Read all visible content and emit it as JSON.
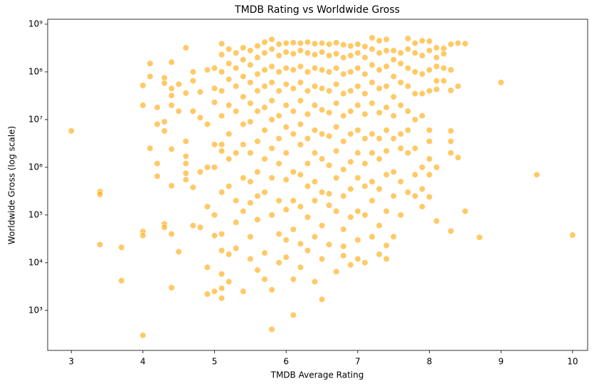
{
  "chart_data": {
    "type": "scatter",
    "title": "TMDB Rating vs Worldwide Gross",
    "x_label": "TMDB Average Rating",
    "y_label": "Worldwide Gross (log scale)",
    "color": "#ffa500",
    "yscale": "log",
    "xlim": [
      2.67,
      10.21
    ],
    "xticks": [
      3,
      4,
      5,
      6,
      7,
      8,
      9,
      10
    ],
    "ylim": [
      145,
      1270000000.0
    ],
    "yticks": [
      {
        "value": 1000.0,
        "label": "10³"
      },
      {
        "value": 10000.0,
        "label": "10⁴"
      },
      {
        "value": 100000.0,
        "label": "10⁵"
      },
      {
        "value": 1000000.0,
        "label": "10⁶"
      },
      {
        "value": 10000000.0,
        "label": "10⁷"
      },
      {
        "value": 100000000.0,
        "label": "10⁸"
      },
      {
        "value": 1000000000.0,
        "label": "10⁹"
      }
    ],
    "x": [
      3,
      3.4,
      3.4,
      3.4,
      3.7,
      3.7,
      4,
      4,
      4,
      4,
      4,
      4.1,
      4.1,
      4.1,
      4.2,
      4.2,
      4.2,
      4.2,
      4.3,
      4.3,
      4.3,
      4.3,
      4.3,
      4.3,
      4.4,
      4.4,
      4.4,
      4.4,
      4.4,
      4.4,
      4.4,
      4.4,
      4.5,
      4.5,
      4.5,
      4.6,
      4.6,
      4.6,
      4.6,
      4.6,
      4.6,
      4.6,
      4.7,
      4.7,
      4.7,
      4.7,
      4.7,
      4.8,
      4.8,
      4.8,
      4.8,
      4.9,
      4.9,
      4.9,
      4.9,
      4.9,
      4.9,
      5,
      5,
      5,
      5,
      5,
      5,
      5,
      5,
      5.1,
      5.1,
      5.1,
      5.1,
      5.1,
      5.1,
      5.1,
      5.1,
      5.1,
      5.1,
      5.1,
      5.1,
      5.1,
      5.2,
      5.2,
      5.2,
      5.2,
      5.2,
      5.2,
      5.2,
      5.2,
      5.2,
      5.3,
      5.3,
      5.3,
      5.3,
      5.3,
      5.3,
      5.3,
      5.3,
      5.4,
      5.4,
      5.4,
      5.4,
      5.4,
      5.4,
      5.4,
      5.4,
      5.4,
      5.5,
      5.5,
      5.5,
      5.5,
      5.5,
      5.5,
      5.5,
      5.5,
      5.5,
      5.5,
      5.6,
      5.6,
      5.6,
      5.6,
      5.6,
      5.6,
      5.6,
      5.6,
      5.6,
      5.6,
      5.7,
      5.7,
      5.7,
      5.7,
      5.7,
      5.7,
      5.7,
      5.7,
      5.7,
      5.7,
      5.8,
      5.8,
      5.8,
      5.8,
      5.8,
      5.8,
      5.8,
      5.8,
      5.8,
      5.8,
      5.8,
      5.9,
      5.9,
      5.9,
      5.9,
      5.9,
      5.9,
      5.9,
      5.9,
      5.9,
      5.9,
      6,
      6,
      6,
      6,
      6,
      6,
      6,
      6,
      6,
      6,
      6,
      6.1,
      6.1,
      6.1,
      6.1,
      6.1,
      6.1,
      6.1,
      6.1,
      6.1,
      6.1,
      6.1,
      6.2,
      6.2,
      6.2,
      6.2,
      6.2,
      6.2,
      6.2,
      6.2,
      6.2,
      6.2,
      6.2,
      6.3,
      6.3,
      6.3,
      6.3,
      6.3,
      6.3,
      6.3,
      6.3,
      6.3,
      6.3,
      6.4,
      6.4,
      6.4,
      6.4,
      6.4,
      6.4,
      6.4,
      6.4,
      6.4,
      6.4,
      6.4,
      6.5,
      6.5,
      6.5,
      6.5,
      6.5,
      6.5,
      6.5,
      6.5,
      6.5,
      6.5,
      6.5,
      6.6,
      6.6,
      6.6,
      6.6,
      6.6,
      6.6,
      6.6,
      6.6,
      6.6,
      6.6,
      6.7,
      6.7,
      6.7,
      6.7,
      6.7,
      6.7,
      6.7,
      6.7,
      6.7,
      6.7,
      6.8,
      6.8,
      6.8,
      6.8,
      6.8,
      6.8,
      6.8,
      6.8,
      6.8,
      6.8,
      6.8,
      6.9,
      6.9,
      6.9,
      6.9,
      6.9,
      6.9,
      6.9,
      6.9,
      6.9,
      6.9,
      7,
      7,
      7,
      7,
      7,
      7,
      7,
      7,
      7,
      7,
      7,
      7.1,
      7.1,
      7.1,
      7.1,
      7.1,
      7.1,
      7.1,
      7.1,
      7.1,
      7.1,
      7.2,
      7.2,
      7.2,
      7.2,
      7.2,
      7.2,
      7.2,
      7.2,
      7.2,
      7.2,
      7.3,
      7.3,
      7.3,
      7.3,
      7.3,
      7.3,
      7.3,
      7.3,
      7.3,
      7.3,
      7.4,
      7.4,
      7.4,
      7.4,
      7.4,
      7.4,
      7.4,
      7.4,
      7.4,
      7.4,
      7.4,
      7.5,
      7.5,
      7.5,
      7.5,
      7.5,
      7.5,
      7.5,
      7.5,
      7.5,
      7.6,
      7.6,
      7.6,
      7.6,
      7.6,
      7.6,
      7.6,
      7.6,
      7.7,
      7.7,
      7.7,
      7.7,
      7.7,
      7.7,
      7.7,
      7.7,
      7.8,
      7.8,
      7.8,
      7.8,
      7.8,
      7.8,
      7.8,
      7.8,
      7.9,
      7.9,
      7.9,
      7.9,
      7.9,
      7.9,
      7.9,
      7.9,
      8,
      8,
      8,
      8,
      8,
      8,
      8,
      8,
      8,
      8.1,
      8.1,
      8.1,
      8.1,
      8.1,
      8.1,
      8.1,
      8.2,
      8.2,
      8.2,
      8.2,
      8.3,
      8.3,
      8.3,
      8.3,
      8.3,
      8.3,
      8.3,
      8.4,
      8.4,
      8.4,
      8.5,
      8.5,
      8.7,
      9,
      9.5,
      10
    ],
    "values": [
      5800000.0,
      310000.0,
      270000.0,
      24000.0,
      21000.0,
      4200.0,
      300,
      45000.0,
      37000.0,
      20000000.0,
      52000000.0,
      150000000.0,
      80000000.0,
      2500000.0,
      18000000.0,
      8000000.0,
      1200000.0,
      650000.0,
      75000000.0,
      58000000.0,
      9000000.0,
      5800000.0,
      65000.0,
      55000.0,
      160000000.0,
      45000000.0,
      32000000.0,
      20000000.0,
      2400000.0,
      410000.0,
      40000.0,
      3000.0,
      17000.0,
      15000000.0,
      55000000.0,
      320000000.0,
      36000000.0,
      3500000.0,
      1700000.0,
      1200000.0,
      750000.0,
      550000.0,
      100000000.0,
      65000000.0,
      15000000.0,
      380000.0,
      60000.0,
      11000000.0,
      38000000.0,
      55000.0,
      800000.0,
      110000000.0,
      8000000.0,
      8000.0,
      2200.0,
      1000000.0,
      150000.0,
      120000000.0,
      45000000.0,
      23000000.0,
      3000000.0,
      1000000.0,
      100000.0,
      37000.0,
      2500.0,
      390000000.0,
      230000000.0,
      100000000.0,
      40000000.0,
      12000000.0,
      3000000.0,
      2200000.0,
      300000.0,
      40000.0,
      18000.0,
      5800.0,
      2900.0,
      1800.0,
      300000000.0,
      150000000.0,
      70000000.0,
      20000000.0,
      5000000.0,
      1500000.0,
      400000.0,
      15000.0,
      4000.0,
      250000000.0,
      120000000.0,
      50000000.0,
      15000000.0,
      2000000.0,
      200000.0,
      70000.0,
      20000.0,
      320000000.0,
      180000000.0,
      80000000.0,
      30000000.0,
      8000000.0,
      3000000.0,
      600000.0,
      120000.0,
      2500.0,
      280000000.0,
      140000000.0,
      60000000.0,
      22000000.0,
      9000000.0,
      2000000.0,
      500000.0,
      180000.0,
      35000.0,
      12000.0,
      350000000.0,
      200000000.0,
      90000000.0,
      40000000.0,
      15000000.0,
      3500000.0,
      800000.0,
      250000.0,
      80000.0,
      7000.0,
      420000000.0,
      250000000.0,
      110000000.0,
      50000000.0,
      18000000.0,
      6000000.0,
      1500000.0,
      300000.0,
      16000.0,
      4500.0,
      480000000.0,
      300000000.0,
      130000000.0,
      60000000.0,
      25000000.0,
      10000000.0,
      2500000.0,
      600000.0,
      100000.0,
      2700.0,
      400,
      380000000.0,
      220000000.0,
      100000000.0,
      40000000.0,
      12000000.0,
      4000000.0,
      1200000.0,
      200000.0,
      40000.0,
      10000.0,
      400000000.0,
      260000000.0,
      120000000.0,
      55000000.0,
      20000000.0,
      7000000.0,
      2000000.0,
      550000.0,
      130000.0,
      30000.0,
      13000.0,
      410000000.0,
      240000000.0,
      110000000.0,
      45000000.0,
      15000000.0,
      5000000.0,
      800000.0,
      200000.0,
      50000.0,
      4500.0,
      800,
      400000000.0,
      280000000.0,
      130000000.0,
      60000000.0,
      25000000.0,
      8000000.0,
      3000000.0,
      700000.0,
      150000.0,
      25000.0,
      8000.0,
      420000000.0,
      250000000.0,
      100000000.0,
      40000000.0,
      13000000.0,
      4000000.0,
      1200000.0,
      400000.0,
      90000.0,
      18000.0,
      390000000.0,
      230000000.0,
      120000000.0,
      50000000.0,
      20000000.0,
      6000000.0,
      2000000.0,
      500000.0,
      200000.0,
      35000.0,
      4000.0,
      400000000.0,
      260000000.0,
      110000000.0,
      45000000.0,
      16000000.0,
      5000000.0,
      1500000.0,
      300000.0,
      60000.0,
      12000.0,
      1700.0,
      380000000.0,
      220000000.0,
      100000000.0,
      40000000.0,
      14000000.0,
      4500000.0,
      1100000.0,
      280000.0,
      160000.0,
      24000.0,
      410000000.0,
      240000000.0,
      120000000.0,
      55000000.0,
      22000000.0,
      7000000.0,
      2200000.0,
      600000.0,
      120000.0,
      6500.0,
      370000000.0,
      200000000.0,
      90000000.0,
      35000000.0,
      12000000.0,
      3500000.0,
      900000.0,
      250000.0,
      50000.0,
      22000.0,
      14000.0,
      350000000.0,
      220000000.0,
      100000000.0,
      40000000.0,
      15000000.0,
      5000000.0,
      1300000.0,
      350000.0,
      90000.0,
      9000.0,
      380000000.0,
      250000000.0,
      120000000.0,
      50000000.0,
      20000000.0,
      6000000.0,
      2000000.0,
      600000.0,
      120000.0,
      30000.0,
      12000.0,
      340000000.0,
      200000000.0,
      90000000.0,
      35000000.0,
      13000000.0,
      4000000.0,
      1200000.0,
      400000.0,
      100000.0,
      10000.0,
      520000000.0,
      300000000.0,
      140000000.0,
      60000000.0,
      22000000.0,
      5000000.0,
      2000000.0,
      500000.0,
      200000.0,
      35000.0,
      450000000.0,
      250000000.0,
      110000000.0,
      45000000.0,
      14000000.0,
      4000000.0,
      1500000.0,
      350000.0,
      60000.0,
      15000.0,
      480000000.0,
      280000000.0,
      130000000.0,
      50000000.0,
      18000000.0,
      6000000.0,
      2200000.0,
      700000.0,
      120000.0,
      23000.0,
      12000.0,
      280000000.0,
      180000000.0,
      80000000.0,
      30000000.0,
      12000000.0,
      4000000.0,
      800000.0,
      250000.0,
      35000.0,
      250000000.0,
      150000000.0,
      60000000.0,
      20000000.0,
      5000000.0,
      2500000.0,
      500000.0,
      100000.0,
      500000000.0,
      300000000.0,
      120000000.0,
      50000000.0,
      15000000.0,
      6000000.0,
      2000000.0,
      300000.0,
      400000000.0,
      250000000.0,
      100000000.0,
      35000000.0,
      10000000.0,
      2500000.0,
      700000.0,
      250000.0,
      450000000.0,
      220000000.0,
      90000000.0,
      35000000.0,
      12000000.0,
      1000000.0,
      350000.0,
      150000.0,
      440000000.0,
      280000000.0,
      110000000.0,
      40000000.0,
      6000000.0,
      3500000.0,
      1500000.0,
      700000.0,
      240000.0,
      320000000.0,
      200000000.0,
      65000000.0,
      43000000.0,
      130000000.0,
      75000.0,
      1000000.0,
      310000000.0,
      240000000.0,
      65000000.0,
      120000000.0,
      380000000.0,
      110000000.0,
      41000000.0,
      5800000.0,
      3500000.0,
      2000000.0,
      46000.0,
      400000000.0,
      50000000.0,
      1600000.0,
      390000000.0,
      120000.0,
      34000.0,
      60000000.0,
      700000.0,
      38000.0
    ]
  }
}
